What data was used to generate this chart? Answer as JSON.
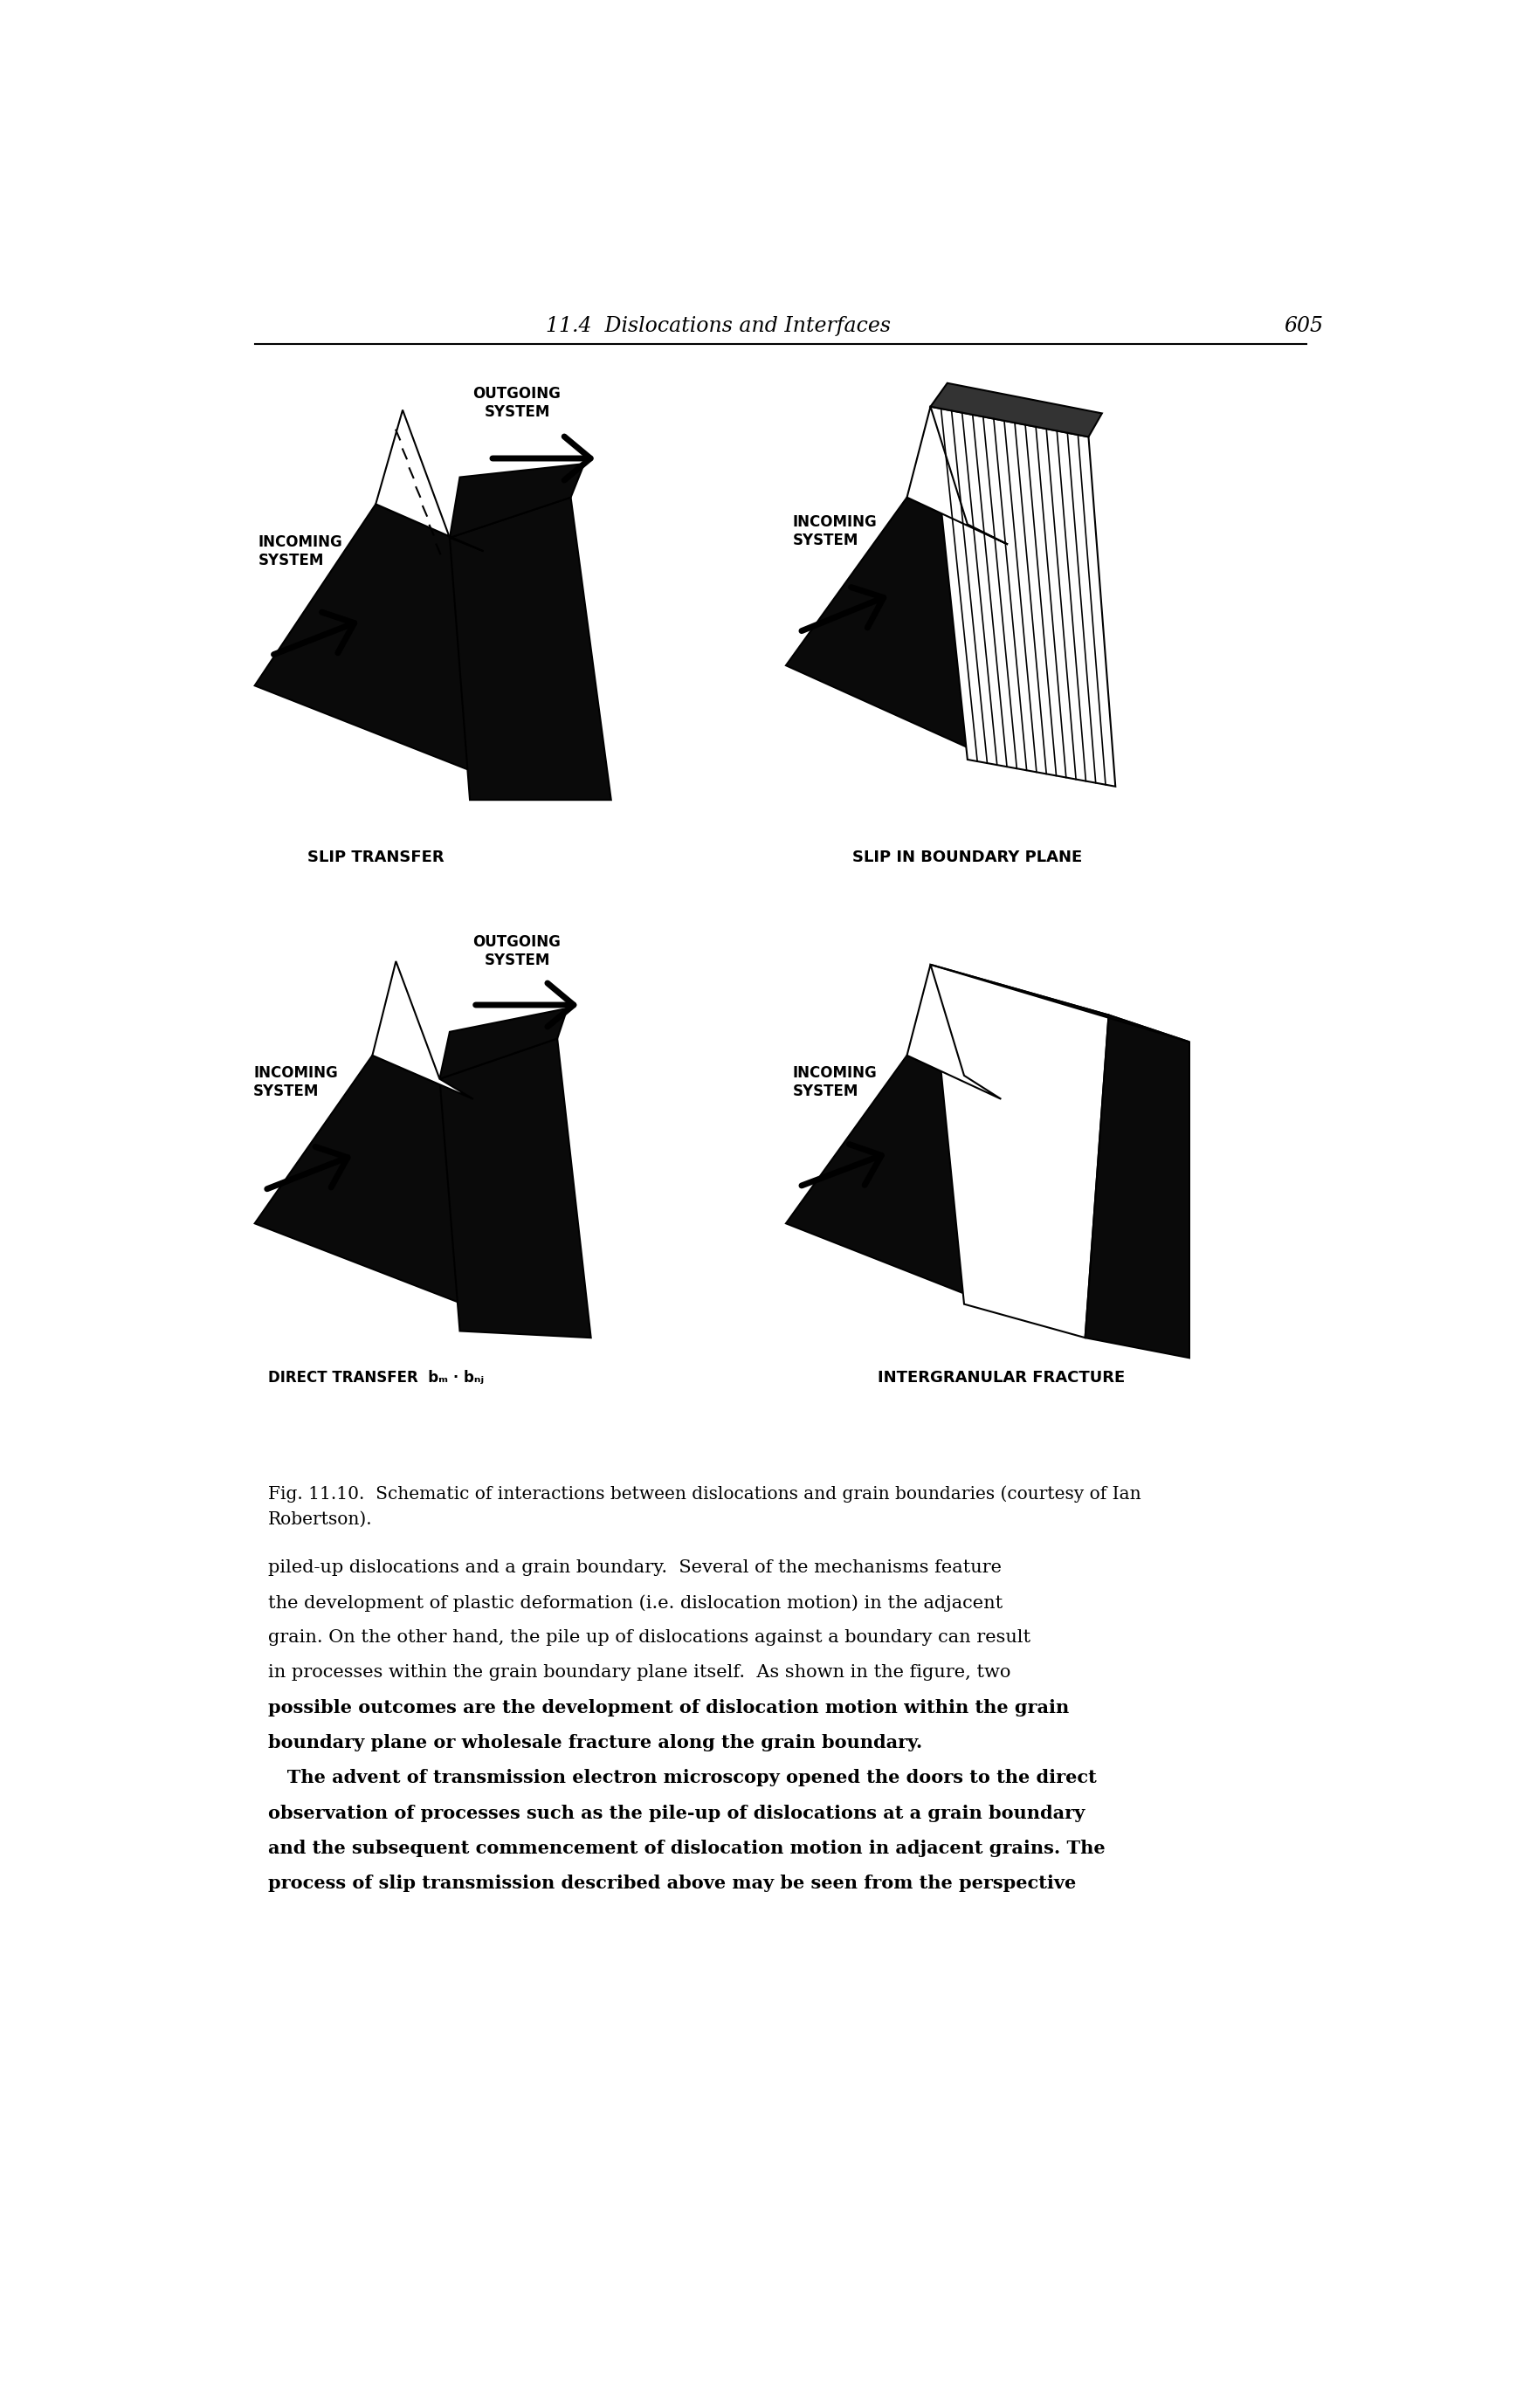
{
  "page_header": "11.4  Dislocations and Interfaces",
  "page_number": "605",
  "caption": "Fig. 11.10.  Schematic of interactions between dislocations and grain boundaries (courtesy of Ian\nRobertson).",
  "labels": {
    "outgoing_system": "OUTGOING\nSYSTEM",
    "incoming_system": "INCOMING\nSYSTEM",
    "slip_transfer": "SLIP TRANSFER",
    "slip_in_boundary": "SLIP IN BOUNDARY PLANE",
    "direct_transfer": "DIRECT TRANSFER  bₘ · bₙⱼ",
    "intergranular_fracture": "INTERGRANULAR FRACTURE"
  },
  "body_text": [
    "piled-up dislocations and a grain boundary.  Several of the mechanisms feature",
    "the development of plastic deformation (i.e. dislocation motion) in the adjacent",
    "grain. On the other hand, the pile up of dislocations against a boundary can result",
    "in processes within the grain boundary plane itself.  As shown in the figure, two",
    "possible outcomes are the development of dislocation motion within the grain",
    "boundary plane or wholesale fracture along the grain boundary.",
    "   The advent of transmission electron microscopy opened the doors to the direct",
    "observation of processes such as the pile-up of dislocations at a grain boundary",
    "and the subsequent commencement of dislocation motion in adjacent grains. The",
    "process of slip transmission described above may be seen from the perspective"
  ],
  "bg_color": "#ffffff",
  "black": "#000000"
}
